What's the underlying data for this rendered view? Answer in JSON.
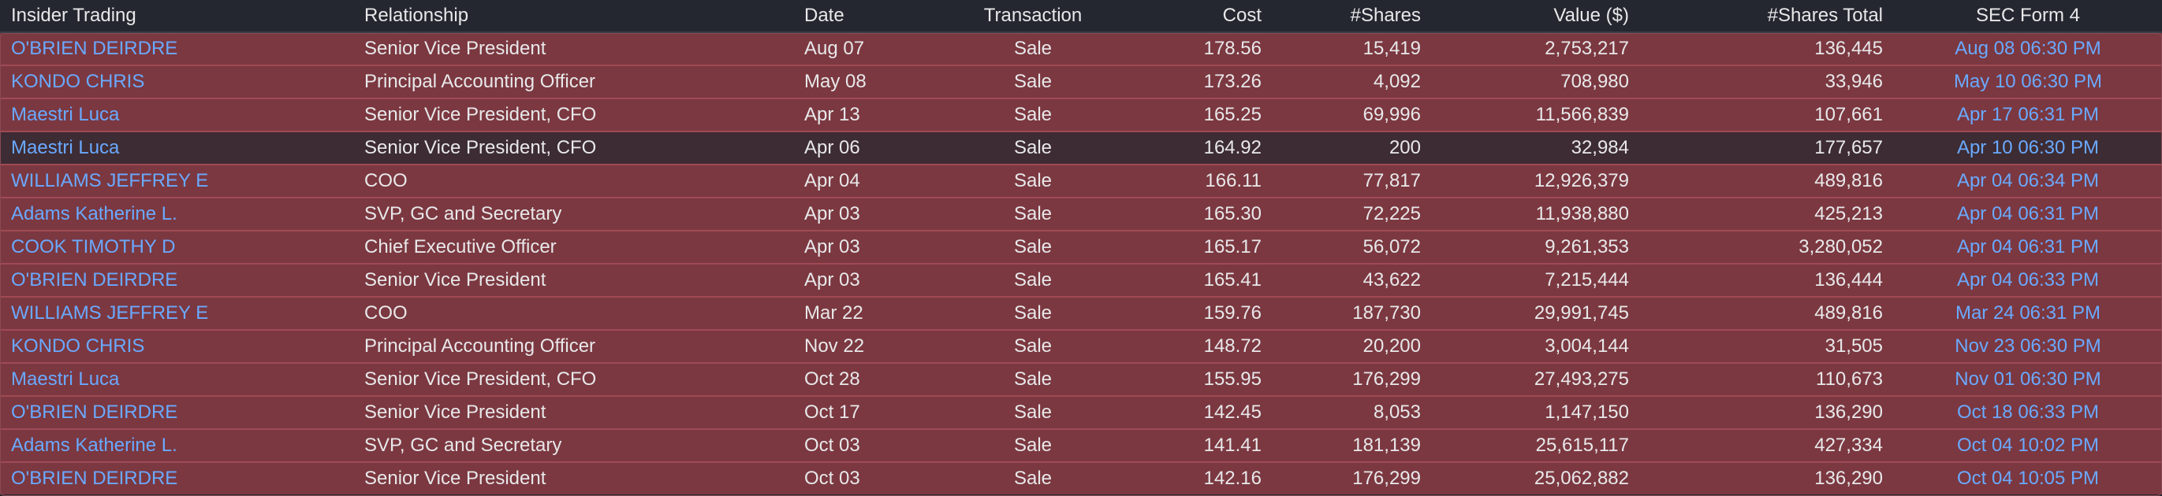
{
  "table": {
    "headers": {
      "insider": "Insider Trading",
      "relationship": "Relationship",
      "date": "Date",
      "transaction": "Transaction",
      "cost": "Cost",
      "shares": "#Shares",
      "value": "Value ($)",
      "shares_total": "#Shares Total",
      "sec_form": "SEC Form 4"
    },
    "rows": [
      {
        "insider": "O'BRIEN DEIRDRE",
        "relationship": "Senior Vice President",
        "date": "Aug 07",
        "transaction": "Sale",
        "cost": "178.56",
        "shares": "15,419",
        "value": "2,753,217",
        "shares_total": "136,445",
        "sec_form": "Aug 08 06:30 PM",
        "style": "sale"
      },
      {
        "insider": "KONDO CHRIS",
        "relationship": "Principal Accounting Officer",
        "date": "May 08",
        "transaction": "Sale",
        "cost": "173.26",
        "shares": "4,092",
        "value": "708,980",
        "shares_total": "33,946",
        "sec_form": "May 10 06:30 PM",
        "style": "sale"
      },
      {
        "insider": "Maestri Luca",
        "relationship": "Senior Vice President, CFO",
        "date": "Apr 13",
        "transaction": "Sale",
        "cost": "165.25",
        "shares": "69,996",
        "value": "11,566,839",
        "shares_total": "107,661",
        "sec_form": "Apr 17 06:31 PM",
        "style": "sale"
      },
      {
        "insider": "Maestri Luca",
        "relationship": "Senior Vice President, CFO",
        "date": "Apr 06",
        "transaction": "Sale",
        "cost": "164.92",
        "shares": "200",
        "value": "32,984",
        "shares_total": "177,657",
        "sec_form": "Apr 10 06:30 PM",
        "style": "dim"
      },
      {
        "insider": "WILLIAMS JEFFREY E",
        "relationship": "COO",
        "date": "Apr 04",
        "transaction": "Sale",
        "cost": "166.11",
        "shares": "77,817",
        "value": "12,926,379",
        "shares_total": "489,816",
        "sec_form": "Apr 04 06:34 PM",
        "style": "sale"
      },
      {
        "insider": "Adams Katherine L.",
        "relationship": "SVP, GC and Secretary",
        "date": "Apr 03",
        "transaction": "Sale",
        "cost": "165.30",
        "shares": "72,225",
        "value": "11,938,880",
        "shares_total": "425,213",
        "sec_form": "Apr 04 06:31 PM",
        "style": "sale"
      },
      {
        "insider": "COOK TIMOTHY D",
        "relationship": "Chief Executive Officer",
        "date": "Apr 03",
        "transaction": "Sale",
        "cost": "165.17",
        "shares": "56,072",
        "value": "9,261,353",
        "shares_total": "3,280,052",
        "sec_form": "Apr 04 06:31 PM",
        "style": "sale"
      },
      {
        "insider": "O'BRIEN DEIRDRE",
        "relationship": "Senior Vice President",
        "date": "Apr 03",
        "transaction": "Sale",
        "cost": "165.41",
        "shares": "43,622",
        "value": "7,215,444",
        "shares_total": "136,444",
        "sec_form": "Apr 04 06:33 PM",
        "style": "sale"
      },
      {
        "insider": "WILLIAMS JEFFREY E",
        "relationship": "COO",
        "date": "Mar 22",
        "transaction": "Sale",
        "cost": "159.76",
        "shares": "187,730",
        "value": "29,991,745",
        "shares_total": "489,816",
        "sec_form": "Mar 24 06:31 PM",
        "style": "sale"
      },
      {
        "insider": "KONDO CHRIS",
        "relationship": "Principal Accounting Officer",
        "date": "Nov 22",
        "transaction": "Sale",
        "cost": "148.72",
        "shares": "20,200",
        "value": "3,004,144",
        "shares_total": "31,505",
        "sec_form": "Nov 23 06:30 PM",
        "style": "sale"
      },
      {
        "insider": "Maestri Luca",
        "relationship": "Senior Vice President, CFO",
        "date": "Oct 28",
        "transaction": "Sale",
        "cost": "155.95",
        "shares": "176,299",
        "value": "27,493,275",
        "shares_total": "110,673",
        "sec_form": "Nov 01 06:30 PM",
        "style": "sale"
      },
      {
        "insider": "O'BRIEN DEIRDRE",
        "relationship": "Senior Vice President",
        "date": "Oct 17",
        "transaction": "Sale",
        "cost": "142.45",
        "shares": "8,053",
        "value": "1,147,150",
        "shares_total": "136,290",
        "sec_form": "Oct 18 06:33 PM",
        "style": "sale"
      },
      {
        "insider": "Adams Katherine L.",
        "relationship": "SVP, GC and Secretary",
        "date": "Oct 03",
        "transaction": "Sale",
        "cost": "141.41",
        "shares": "181,139",
        "value": "25,615,117",
        "shares_total": "427,334",
        "sec_form": "Oct 04 10:02 PM",
        "style": "sale"
      },
      {
        "insider": "O'BRIEN DEIRDRE",
        "relationship": "Senior Vice President",
        "date": "Oct 03",
        "transaction": "Sale",
        "cost": "142.16",
        "shares": "176,299",
        "value": "25,062,882",
        "shares_total": "136,290",
        "sec_form": "Oct 04 10:05 PM",
        "style": "sale"
      }
    ]
  }
}
